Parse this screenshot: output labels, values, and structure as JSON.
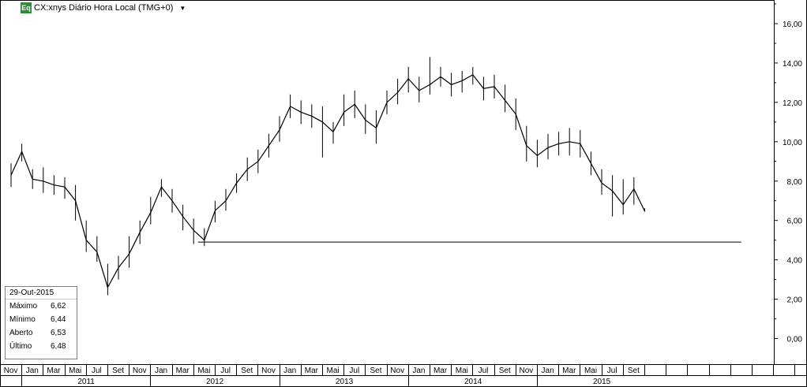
{
  "header": {
    "badge": "Eq",
    "title": "CX:xnys Diário Hora Local (TMG+0)",
    "dropdown_icon": "triangle-down-icon"
  },
  "info_box": {
    "date": "29-Out-2015",
    "rows": [
      {
        "label": "Máximo",
        "value": "6,62"
      },
      {
        "label": "Mínimo",
        "value": "6,44"
      },
      {
        "label": "Aberto",
        "value": "6,53"
      },
      {
        "label": "Último",
        "value": "6,48"
      }
    ]
  },
  "chart_data": {
    "type": "line",
    "title": "CX:xnys Diário Hora Local (TMG+0)",
    "xlabel": "",
    "ylabel": "",
    "ylim": [
      -1.3,
      17.2
    ],
    "y_ticks": [
      "0,00",
      "2,00",
      "4,00",
      "6,00",
      "8,00",
      "10,00",
      "12,00",
      "14,00",
      "16,00"
    ],
    "y_tick_values": [
      0,
      2,
      4,
      6,
      8,
      10,
      12,
      14,
      16
    ],
    "month_labels": [
      "Nov",
      "Jan",
      "Mar",
      "Mai",
      "Jul",
      "Set",
      "Nov",
      "Jan",
      "Mar",
      "Mai",
      "Jul",
      "Set",
      "Nov",
      "Jan",
      "Mar",
      "Mai",
      "Jul",
      "Set",
      "Nov",
      "Jan",
      "Mar",
      "Mai",
      "Jul",
      "Set",
      "Nov",
      "Jan",
      "Mar",
      "Mai",
      "Jul",
      "Set"
    ],
    "year_labels": [
      "2011",
      "2012",
      "2013",
      "2014",
      "2015"
    ],
    "x_range_months": [
      "2010-11",
      "2016-09"
    ],
    "series": [
      {
        "name": "CX",
        "x": [
          "2010-11",
          "2010-12",
          "2011-01",
          "2011-02",
          "2011-03",
          "2011-04",
          "2011-05",
          "2011-06",
          "2011-07",
          "2011-08",
          "2011-09",
          "2011-10",
          "2011-11",
          "2011-12",
          "2012-01",
          "2012-02",
          "2012-03",
          "2012-04",
          "2012-05",
          "2012-06",
          "2012-07",
          "2012-08",
          "2012-09",
          "2012-10",
          "2012-11",
          "2012-12",
          "2013-01",
          "2013-02",
          "2013-03",
          "2013-04",
          "2013-05",
          "2013-06",
          "2013-07",
          "2013-08",
          "2013-09",
          "2013-10",
          "2013-11",
          "2013-12",
          "2014-01",
          "2014-02",
          "2014-03",
          "2014-04",
          "2014-05",
          "2014-06",
          "2014-07",
          "2014-08",
          "2014-09",
          "2014-10",
          "2014-11",
          "2014-12",
          "2015-01",
          "2015-02",
          "2015-03",
          "2015-04",
          "2015-05",
          "2015-06",
          "2015-07",
          "2015-08",
          "2015-09",
          "2015-10"
        ],
        "y": [
          8.3,
          9.5,
          8.1,
          8.0,
          7.8,
          7.7,
          7.0,
          5.0,
          4.4,
          2.6,
          3.6,
          4.3,
          5.4,
          6.4,
          7.7,
          7.0,
          6.2,
          5.5,
          5.0,
          6.5,
          7.0,
          7.9,
          8.6,
          9.0,
          9.8,
          10.6,
          11.8,
          11.5,
          11.3,
          11.0,
          10.5,
          11.5,
          11.9,
          11.1,
          10.7,
          12.0,
          12.5,
          13.2,
          12.6,
          12.9,
          13.3,
          12.9,
          13.1,
          13.4,
          12.7,
          12.8,
          12.1,
          11.4,
          9.8,
          9.3,
          9.7,
          9.9,
          10.0,
          9.9,
          8.9,
          7.9,
          7.5,
          6.8,
          7.6,
          6.48
        ],
        "high": [
          8.9,
          9.9,
          8.6,
          8.7,
          8.3,
          8.2,
          7.8,
          6.0,
          5.2,
          3.8,
          4.2,
          5.2,
          6.0,
          7.2,
          8.1,
          7.6,
          6.8,
          6.1,
          5.6,
          7.0,
          7.6,
          8.4,
          9.2,
          9.6,
          10.4,
          11.3,
          12.4,
          12.1,
          11.9,
          11.8,
          11.0,
          12.4,
          12.6,
          11.9,
          11.6,
          12.6,
          13.2,
          13.8,
          13.3,
          14.3,
          13.8,
          13.5,
          13.6,
          13.8,
          13.3,
          13.4,
          12.9,
          12.2,
          10.8,
          10.1,
          10.4,
          10.5,
          10.7,
          10.6,
          9.5,
          8.6,
          8.3,
          8.1,
          8.2,
          6.62
        ],
        "low": [
          7.7,
          9.0,
          7.6,
          7.4,
          7.3,
          7.1,
          6.0,
          4.4,
          3.9,
          2.2,
          3.0,
          3.6,
          4.8,
          5.8,
          7.2,
          6.4,
          5.5,
          4.8,
          4.7,
          5.9,
          6.5,
          7.4,
          8.0,
          8.4,
          9.2,
          10.0,
          11.2,
          10.9,
          10.7,
          9.2,
          9.9,
          10.8,
          11.2,
          10.4,
          9.9,
          11.4,
          11.9,
          12.5,
          12.0,
          12.4,
          12.8,
          12.3,
          12.5,
          12.9,
          12.1,
          12.2,
          11.5,
          10.6,
          9.0,
          8.7,
          9.1,
          9.3,
          9.3,
          9.2,
          8.3,
          7.3,
          6.2,
          6.3,
          6.8,
          6.44
        ]
      }
    ],
    "support_line": {
      "y": 4.9,
      "from": "2012-05",
      "to": "2016-07"
    },
    "grid": false,
    "legend": "none"
  }
}
